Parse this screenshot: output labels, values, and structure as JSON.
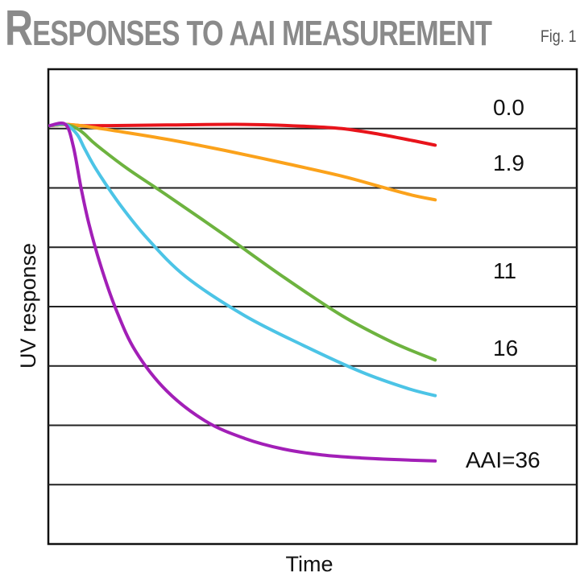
{
  "header": {
    "title_initial": "R",
    "title_rest": "ESPONSES TO AAI MEASUREMENT",
    "fig_label": "Fig. 1"
  },
  "chart_data": {
    "type": "line",
    "title": "RESPONSES TO AAI MEASUREMENT",
    "xlabel": "Time",
    "ylabel": "UV response",
    "xlim": [
      0,
      100
    ],
    "ylim": [
      0,
      8
    ],
    "grid": "horizontal",
    "y_gridlines": [
      1,
      2,
      3,
      4,
      5,
      6,
      7
    ],
    "series": [
      {
        "name": "0.0",
        "color": "#e8141b",
        "x": [
          0,
          4,
          8,
          15,
          30,
          50,
          65,
          75,
          85,
          93,
          99
        ],
        "y": [
          7.05,
          7.07,
          7.05,
          7.05,
          7.06,
          7.07,
          7.04,
          7.0,
          6.9,
          6.8,
          6.72
        ]
      },
      {
        "name": "1.9",
        "color": "#fba21b",
        "x": [
          0,
          4,
          8,
          15,
          30,
          45,
          60,
          75,
          85,
          93,
          99
        ],
        "y": [
          7.05,
          7.07,
          7.05,
          6.98,
          6.82,
          6.63,
          6.42,
          6.2,
          6.02,
          5.88,
          5.8
        ]
      },
      {
        "name": "11",
        "color": "#6db33f",
        "x": [
          0,
          4,
          7,
          9,
          12,
          20,
          30,
          45,
          60,
          75,
          88,
          99
        ],
        "y": [
          7.05,
          7.07,
          7.0,
          6.9,
          6.72,
          6.32,
          5.88,
          5.2,
          4.5,
          3.85,
          3.4,
          3.1
        ]
      },
      {
        "name": "16",
        "color": "#4cc4e6",
        "x": [
          0,
          4,
          7,
          9,
          12,
          18,
          25,
          35,
          50,
          65,
          80,
          92,
          99
        ],
        "y": [
          7.05,
          7.07,
          6.9,
          6.65,
          6.3,
          5.72,
          5.15,
          4.5,
          3.85,
          3.35,
          2.9,
          2.62,
          2.5
        ]
      },
      {
        "name": "AAI=36",
        "color": "#a21fb7",
        "x": [
          0,
          4,
          6,
          8,
          10,
          13,
          17,
          22,
          30,
          40,
          50,
          60,
          70,
          80,
          90,
          99
        ],
        "y": [
          7.05,
          7.07,
          6.7,
          6.0,
          5.4,
          4.7,
          3.95,
          3.25,
          2.58,
          2.07,
          1.78,
          1.6,
          1.5,
          1.45,
          1.42,
          1.4
        ]
      }
    ],
    "series_labels": [
      "0.0",
      "1.9",
      "11",
      "16",
      "AAI=36"
    ]
  }
}
